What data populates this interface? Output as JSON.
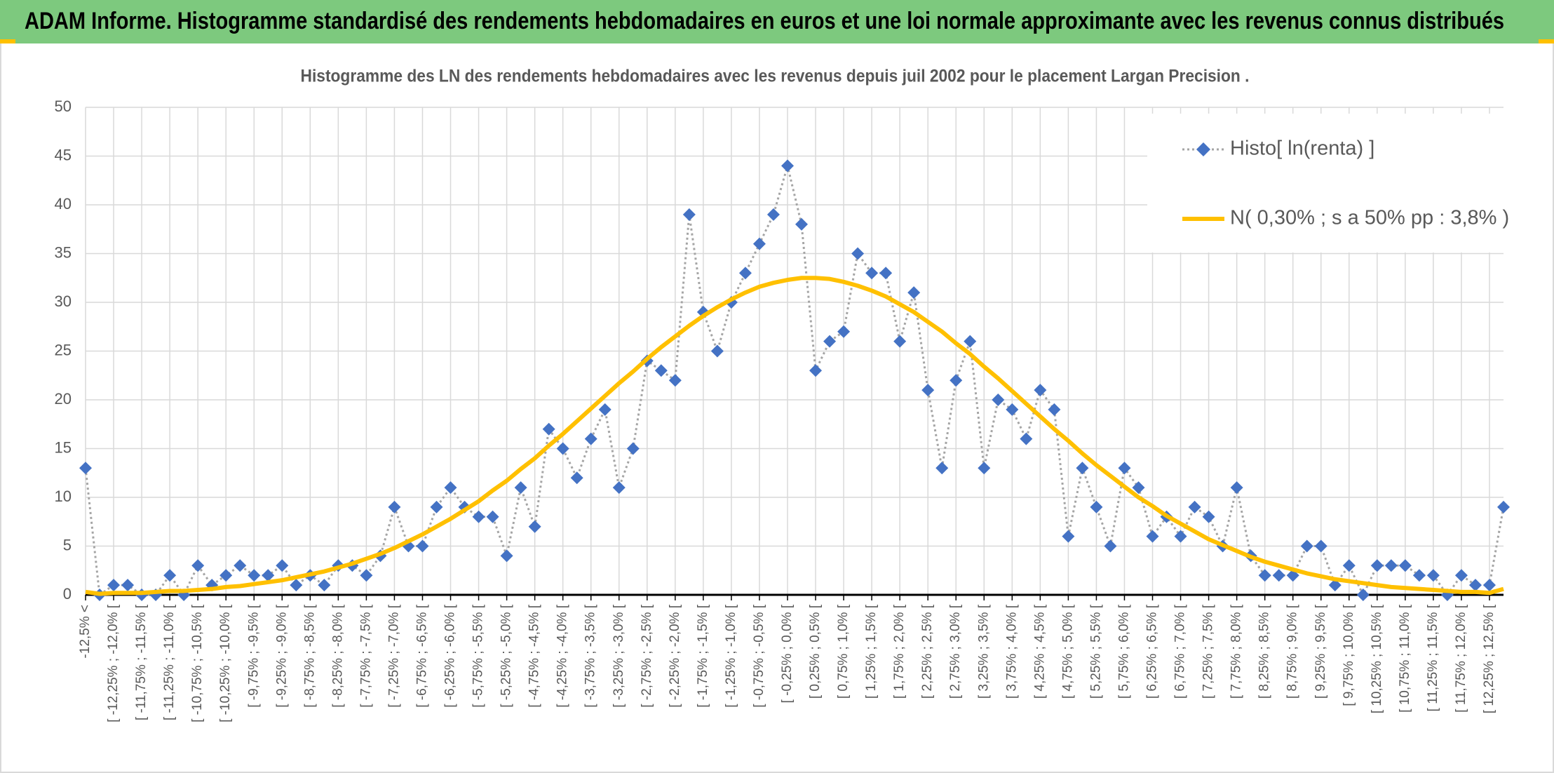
{
  "header": {
    "title": "ADAM Informe. Histogramme standardisé des rendements hebdomadaires en euros et une loi normale approximante avec les revenus connus distribués"
  },
  "chart_data": {
    "type": "line",
    "title": "Histogramme des LN des rendements hebdomadaires avec les revenus depuis juil 2002 pour le placement Largan Precision .",
    "categories": [
      "-12,5% <",
      null,
      "[ -12,25% ; -12,0% [",
      null,
      "[ -11,75% ; -11,5% [",
      null,
      "[ -11,25% ; -11,0% [",
      null,
      "[ -10,75% ; -10,5% [",
      null,
      "[ -10,25% ; -10,0% [",
      null,
      "[ -9,75% ; -9,5% [",
      null,
      "[ -9,25% ; -9,0% [",
      null,
      "[ -8,75% ; -8,5% [",
      null,
      "[ -8,25% ; -8,0% [",
      null,
      "[ -7,75% ; -7,5% [",
      null,
      "[ -7,25% ; -7,0% [",
      null,
      "[ -6,75% ; -6,5% [",
      null,
      "[ -6,25% ; -6,0% [",
      null,
      "[ -5,75% ; -5,5% [",
      null,
      "[ -5,25% ; -5,0% [",
      null,
      "[ -4,75% ; -4,5% [",
      null,
      "[ -4,25% ; -4,0% [",
      null,
      "[ -3,75% ; -3,5% [",
      null,
      "[ -3,25% ; -3,0% [",
      null,
      "[ -2,75% ; -2,5% [",
      null,
      "[ -2,25% ; -2,0% [",
      null,
      "[ -1,75% ; -1,5% [",
      null,
      "[ -1,25% ; -1,0% [",
      null,
      "[ -0,75% ; -0,5% [",
      null,
      "[ -0,25% ; 0,0% [",
      null,
      "[ 0,25% ; 0,5% [",
      null,
      "[ 0,75% ; 1,0% [",
      null,
      "[ 1,25% ; 1,5% [",
      null,
      "[ 1,75% ; 2,0% [",
      null,
      "[ 2,25% ; 2,5% [",
      null,
      "[ 2,75% ; 3,0% [",
      null,
      "[ 3,25% ; 3,5% [",
      null,
      "[ 3,75% ; 4,0% [",
      null,
      "[ 4,25% ; 4,5% [",
      null,
      "[ 4,75% ; 5,0% [",
      null,
      "[ 5,25% ; 5,5% [",
      null,
      "[ 5,75% ; 6,0% [",
      null,
      "[ 6,25% ; 6,5% [",
      null,
      "[ 6,75% ; 7,0% [",
      null,
      "[ 7,25% ; 7,5% [",
      null,
      "[ 7,75% ; 8,0% [",
      null,
      "[ 8,25% ; 8,5% [",
      null,
      "[ 8,75% ; 9,0% [",
      null,
      "[ 9,25% ; 9,5% [",
      null,
      "[ 9,75% ; 10,0% [",
      null,
      "[ 10,25% ; 10,5% [",
      null,
      "[ 10,75% ; 11,0% [",
      null,
      "[ 11,25% ; 11,5% [",
      null,
      "[ 11,75% ; 12,0% [",
      null,
      "[ 12,25% ; 12,5% [",
      null
    ],
    "series": [
      {
        "name": "Histo[ ln(renta) ]",
        "color": "#4472c4",
        "line_color": "#a5a5a5",
        "line_style": "dotted",
        "marker": "diamond",
        "values": [
          13,
          0,
          1,
          1,
          0,
          0,
          2,
          0,
          3,
          1,
          2,
          3,
          2,
          2,
          3,
          1,
          2,
          1,
          3,
          3,
          2,
          4,
          9,
          5,
          5,
          9,
          11,
          9,
          8,
          8,
          4,
          11,
          7,
          17,
          15,
          12,
          16,
          19,
          11,
          15,
          24,
          23,
          22,
          39,
          29,
          25,
          30,
          33,
          36,
          39,
          44,
          38,
          23,
          26,
          27,
          35,
          33,
          33,
          26,
          31,
          21,
          13,
          22,
          26,
          13,
          20,
          19,
          16,
          21,
          19,
          6,
          13,
          9,
          5,
          13,
          11,
          6,
          8,
          6,
          9,
          8,
          5,
          11,
          4,
          2,
          2,
          2,
          5,
          5,
          1,
          3,
          0,
          3,
          3,
          3,
          2,
          2,
          0,
          2,
          1,
          1,
          9
        ]
      },
      {
        "name": "N( 0,30% ; s a 50% pp : 3,8% )",
        "color": "#ffc000",
        "line_style": "solid",
        "values": [
          0.3,
          0.1,
          0.2,
          0.2,
          0.2,
          0.3,
          0.4,
          0.4,
          0.5,
          0.6,
          0.8,
          0.9,
          1.1,
          1.3,
          1.5,
          1.8,
          2.1,
          2.4,
          2.8,
          3.2,
          3.7,
          4.2,
          4.8,
          5.5,
          6.2,
          7.0,
          7.8,
          8.7,
          9.6,
          10.7,
          11.7,
          12.9,
          14.0,
          15.3,
          16.5,
          17.8,
          19.1,
          20.4,
          21.7,
          22.9,
          24.2,
          25.4,
          26.5,
          27.6,
          28.6,
          29.5,
          30.3,
          31.0,
          31.6,
          32.0,
          32.3,
          32.5,
          32.5,
          32.4,
          32.1,
          31.7,
          31.2,
          30.6,
          29.8,
          29.0,
          28.0,
          27.0,
          25.8,
          24.7,
          23.4,
          22.2,
          20.9,
          19.6,
          18.3,
          17.0,
          15.8,
          14.5,
          13.3,
          12.2,
          11.1,
          10.0,
          9.1,
          8.1,
          7.3,
          6.5,
          5.7,
          5.1,
          4.5,
          3.9,
          3.4,
          3.0,
          2.6,
          2.2,
          1.9,
          1.6,
          1.4,
          1.2,
          1.0,
          0.8,
          0.7,
          0.6,
          0.5,
          0.4,
          0.3,
          0.3,
          0.2,
          0.6
        ]
      }
    ],
    "ylim": [
      0,
      50
    ],
    "yticks": [
      0,
      5,
      10,
      15,
      20,
      25,
      30,
      35,
      40,
      45,
      50
    ],
    "grid": true,
    "legend": "top-right"
  }
}
